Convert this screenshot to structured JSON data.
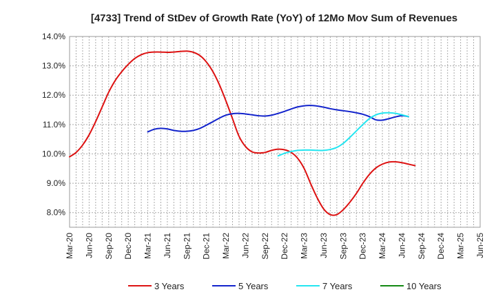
{
  "chart_data": {
    "type": "line",
    "title": "[4733]  Trend of StDev of Growth Rate (YoY) of 12Mo Mov Sum of Revenues",
    "xlabel": "",
    "ylabel": "",
    "ylim": [
      7.5,
      14.0
    ],
    "y_ticks": [
      8.0,
      9.0,
      10.0,
      11.0,
      12.0,
      13.0,
      14.0
    ],
    "y_tick_labels": [
      "8.0%",
      "9.0%",
      "10.0%",
      "11.0%",
      "12.0%",
      "13.0%",
      "14.0%"
    ],
    "x_tick_labels": [
      "Mar-20",
      "Jun-20",
      "Sep-20",
      "Dec-20",
      "Mar-21",
      "Jun-21",
      "Sep-21",
      "Dec-21",
      "Mar-22",
      "Jun-22",
      "Sep-22",
      "Dec-22",
      "Mar-23",
      "Jun-23",
      "Sep-23",
      "Dec-23",
      "Mar-24",
      "Jun-24",
      "Sep-24",
      "Dec-24",
      "Mar-25",
      "Jun-25"
    ],
    "grid": true,
    "legend_position": "bottom",
    "series": [
      {
        "name": "3 Years",
        "color": "#dd1111",
        "start_index": 0,
        "values": [
          9.9,
          10.05,
          10.3,
          10.65,
          11.1,
          11.6,
          12.1,
          12.5,
          12.8,
          13.05,
          13.25,
          13.38,
          13.45,
          13.47,
          13.47,
          13.46,
          13.47,
          13.49,
          13.5,
          13.46,
          13.35,
          13.13,
          12.8,
          12.35,
          11.8,
          11.2,
          10.6,
          10.25,
          10.07,
          10.03,
          10.05,
          10.12,
          10.16,
          10.14,
          10.05,
          9.85,
          9.5,
          8.98,
          8.5,
          8.12,
          7.93,
          7.93,
          8.1,
          8.35,
          8.65,
          9.0,
          9.3,
          9.52,
          9.65,
          9.72,
          9.73,
          9.7,
          9.65,
          9.6
        ]
      },
      {
        "name": "5 Years",
        "color": "#1122cc",
        "start_index": 12,
        "values": [
          10.75,
          10.84,
          10.87,
          10.85,
          10.8,
          10.77,
          10.77,
          10.8,
          10.87,
          10.98,
          11.1,
          11.22,
          11.32,
          11.37,
          11.38,
          11.36,
          11.33,
          11.3,
          11.29,
          11.32,
          11.38,
          11.45,
          11.53,
          11.6,
          11.64,
          11.65,
          11.63,
          11.59,
          11.54,
          11.5,
          11.47,
          11.44,
          11.4,
          11.35,
          11.27,
          11.16,
          11.15,
          11.2,
          11.26,
          11.3,
          11.27
        ]
      },
      {
        "name": "7 Years",
        "color": "#22e5f0",
        "start_index": 32,
        "values": [
          9.93,
          10.02,
          10.08,
          10.12,
          10.13,
          10.13,
          10.12,
          10.12,
          10.15,
          10.22,
          10.36,
          10.56,
          10.78,
          11.0,
          11.2,
          11.33,
          11.39,
          11.4,
          11.38,
          11.33,
          11.27
        ]
      },
      {
        "name": "10 Years",
        "color": "#118811",
        "start_index": 0,
        "values": []
      }
    ]
  }
}
